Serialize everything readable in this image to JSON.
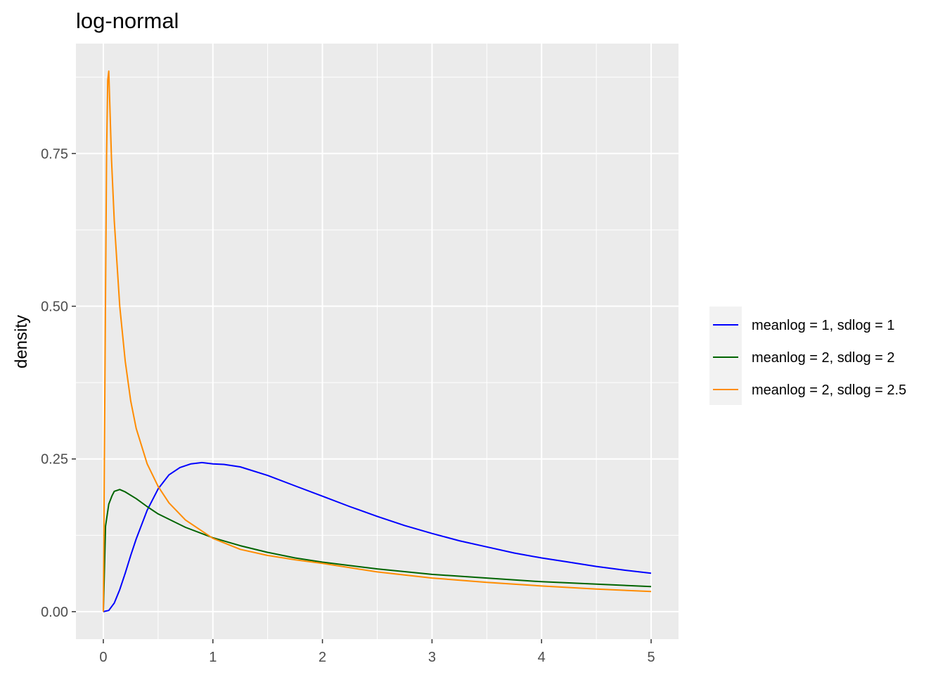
{
  "chart_data": {
    "type": "line",
    "title": "log-normal",
    "xlabel": "",
    "ylabel": "density",
    "xlim": [
      -0.25,
      5.25
    ],
    "ylim": [
      -0.045,
      0.93
    ],
    "x_ticks": [
      0,
      1,
      2,
      3,
      4,
      5
    ],
    "x_tick_labels": [
      "0",
      "1",
      "2",
      "3",
      "4",
      "5"
    ],
    "y_ticks": [
      0,
      0.25,
      0.5,
      0.75
    ],
    "y_tick_labels": [
      "0.00",
      "0.25",
      "0.50",
      "0.75"
    ],
    "grid": true,
    "legend_position": "right",
    "series": [
      {
        "name": "meanlog = 1, sdlog = 1",
        "color": "#0000FF",
        "x": [
          0,
          0.05,
          0.1,
          0.15,
          0.2,
          0.25,
          0.3,
          0.4,
          0.5,
          0.6,
          0.7,
          0.8,
          0.9,
          1.0,
          1.1,
          1.25,
          1.5,
          1.75,
          2.0,
          2.25,
          2.5,
          2.75,
          3.0,
          3.25,
          3.5,
          3.75,
          4.0,
          4.25,
          4.5,
          4.75,
          5.0
        ],
        "y": [
          0,
          0.002,
          0.014,
          0.036,
          0.063,
          0.092,
          0.119,
          0.166,
          0.201,
          0.224,
          0.236,
          0.242,
          0.244,
          0.242,
          0.241,
          0.237,
          0.223,
          0.206,
          0.189,
          0.172,
          0.156,
          0.141,
          0.128,
          0.116,
          0.106,
          0.096,
          0.088,
          0.081,
          0.074,
          0.068,
          0.063
        ]
      },
      {
        "name": "meanlog = 2, sdlog = 2",
        "color": "#006400",
        "x": [
          0,
          0.02,
          0.05,
          0.08,
          0.1,
          0.15,
          0.2,
          0.3,
          0.4,
          0.5,
          0.75,
          1.0,
          1.25,
          1.5,
          1.75,
          2.0,
          2.5,
          3.0,
          3.5,
          4.0,
          4.5,
          5.0
        ],
        "y": [
          0,
          0.14,
          0.176,
          0.19,
          0.197,
          0.2,
          0.196,
          0.185,
          0.172,
          0.16,
          0.138,
          0.121,
          0.108,
          0.097,
          0.088,
          0.081,
          0.07,
          0.061,
          0.055,
          0.049,
          0.045,
          0.041
        ]
      },
      {
        "name": "meanlog = 2, sdlog = 2.5",
        "color": "#FF8C00",
        "x": [
          0,
          0.01,
          0.02,
          0.03,
          0.04,
          0.05,
          0.075,
          0.1,
          0.15,
          0.2,
          0.25,
          0.3,
          0.4,
          0.5,
          0.6,
          0.75,
          1.0,
          1.25,
          1.5,
          1.75,
          2.0,
          2.5,
          3.0,
          3.5,
          4.0,
          4.5,
          5.0
        ],
        "y": [
          0,
          0.26,
          0.52,
          0.75,
          0.87,
          0.885,
          0.74,
          0.64,
          0.5,
          0.41,
          0.345,
          0.3,
          0.242,
          0.205,
          0.178,
          0.15,
          0.12,
          0.102,
          0.092,
          0.085,
          0.079,
          0.065,
          0.055,
          0.048,
          0.042,
          0.037,
          0.033
        ]
      }
    ]
  }
}
